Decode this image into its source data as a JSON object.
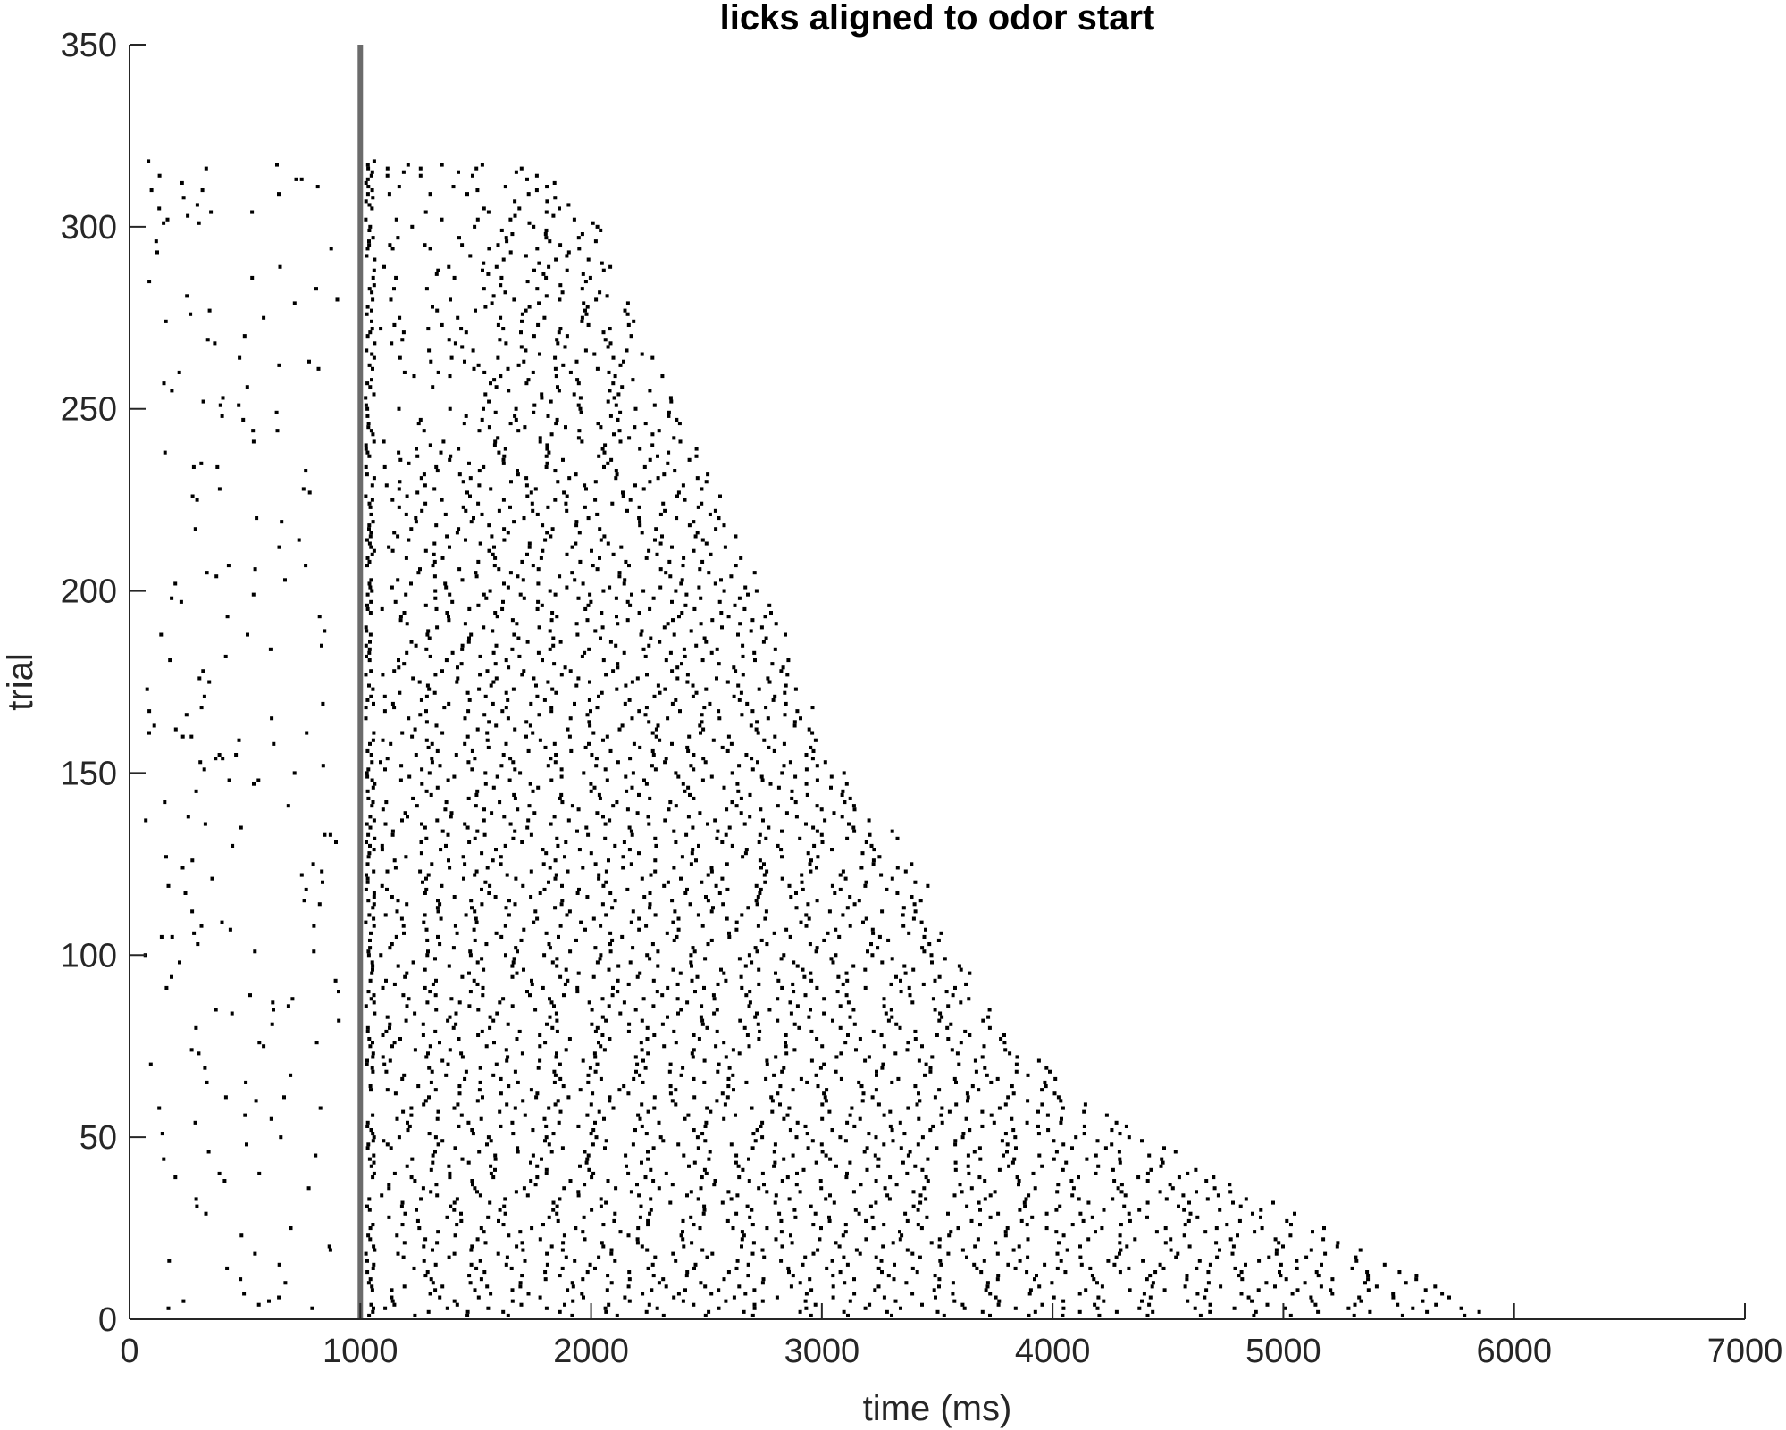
{
  "chart_data": {
    "type": "scatter",
    "subtype": "raster",
    "title": "licks aligned to odor start",
    "xlabel": "time (ms)",
    "ylabel": "trial",
    "xlim": [
      0,
      7000
    ],
    "ylim": [
      0,
      350
    ],
    "xticks": [
      0,
      1000,
      2000,
      3000,
      4000,
      5000,
      6000,
      7000
    ],
    "yticks": [
      0,
      50,
      100,
      150,
      200,
      250,
      300,
      350
    ],
    "grid": false,
    "box": false,
    "n_trials": 318,
    "marker_color": "#000000",
    "event_line": {
      "x": 1000,
      "color": "#6b6b6b"
    },
    "trial_end_ms": [
      [
        0,
        5950
      ],
      [
        20,
        5350
      ],
      [
        40,
        4700
      ],
      [
        60,
        4150
      ],
      [
        80,
        3800
      ],
      [
        100,
        3600
      ],
      [
        120,
        3450
      ],
      [
        140,
        3250
      ],
      [
        160,
        3050
      ],
      [
        180,
        2900
      ],
      [
        200,
        2750
      ],
      [
        220,
        2600
      ],
      [
        240,
        2450
      ],
      [
        260,
        2300
      ],
      [
        280,
        2150
      ],
      [
        300,
        2050
      ],
      [
        310,
        1900
      ],
      [
        318,
        1650
      ]
    ],
    "lick_density": {
      "pre_odor_per_trial": 0.45,
      "post_odor_per_ms": 0.0045
    }
  },
  "colors": {
    "axis": "#262626",
    "tick_label": "#262626",
    "marker": "#000000",
    "event_line": "#6b6b6b"
  }
}
